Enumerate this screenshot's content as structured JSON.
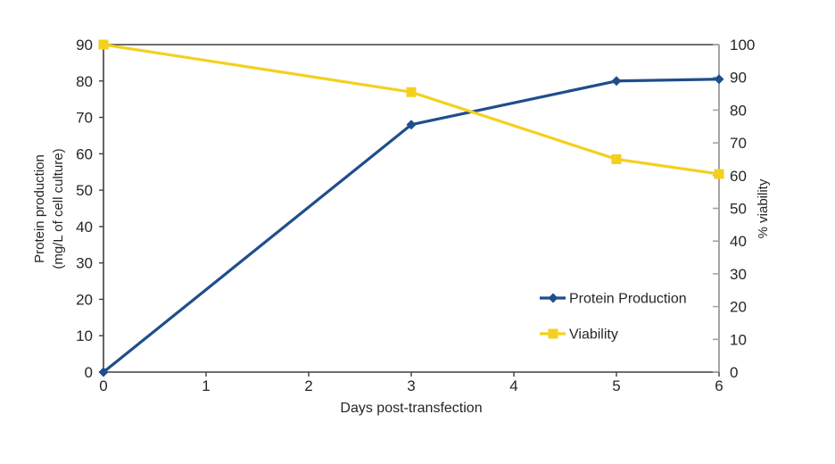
{
  "chart_data": {
    "type": "line",
    "title": "",
    "xlabel": "Days post-transfection",
    "xlim": [
      0,
      6
    ],
    "xticks": [
      0,
      1,
      2,
      3,
      4,
      5,
      6
    ],
    "grid": false,
    "left_axis": {
      "title_line1": "Protein production",
      "title_line2": "(mg/L of cell culture)",
      "min": 0,
      "max": 90,
      "step": 10
    },
    "right_axis": {
      "title": "% viability",
      "min": 0,
      "max": 100,
      "step": 10
    },
    "series": [
      {
        "name": "Protein Production",
        "axis": "left",
        "marker": "diamond",
        "color": "#1F4E8C",
        "x": [
          0,
          3,
          5,
          6
        ],
        "values": [
          0,
          68,
          80,
          80.5
        ]
      },
      {
        "name": "Viability",
        "axis": "right",
        "marker": "square",
        "color": "#F4D01E",
        "x": [
          0,
          3,
          5,
          6
        ],
        "values": [
          100,
          85.5,
          65,
          60.5
        ]
      }
    ],
    "legend": {
      "position": "inside-right",
      "entries": [
        "Protein Production",
        "Viability"
      ]
    }
  },
  "colors": {
    "axis_dark": "#3F3F3F",
    "axis_gray": "#A6A6A6",
    "text": "#262626",
    "background": "#FFFFFF"
  }
}
